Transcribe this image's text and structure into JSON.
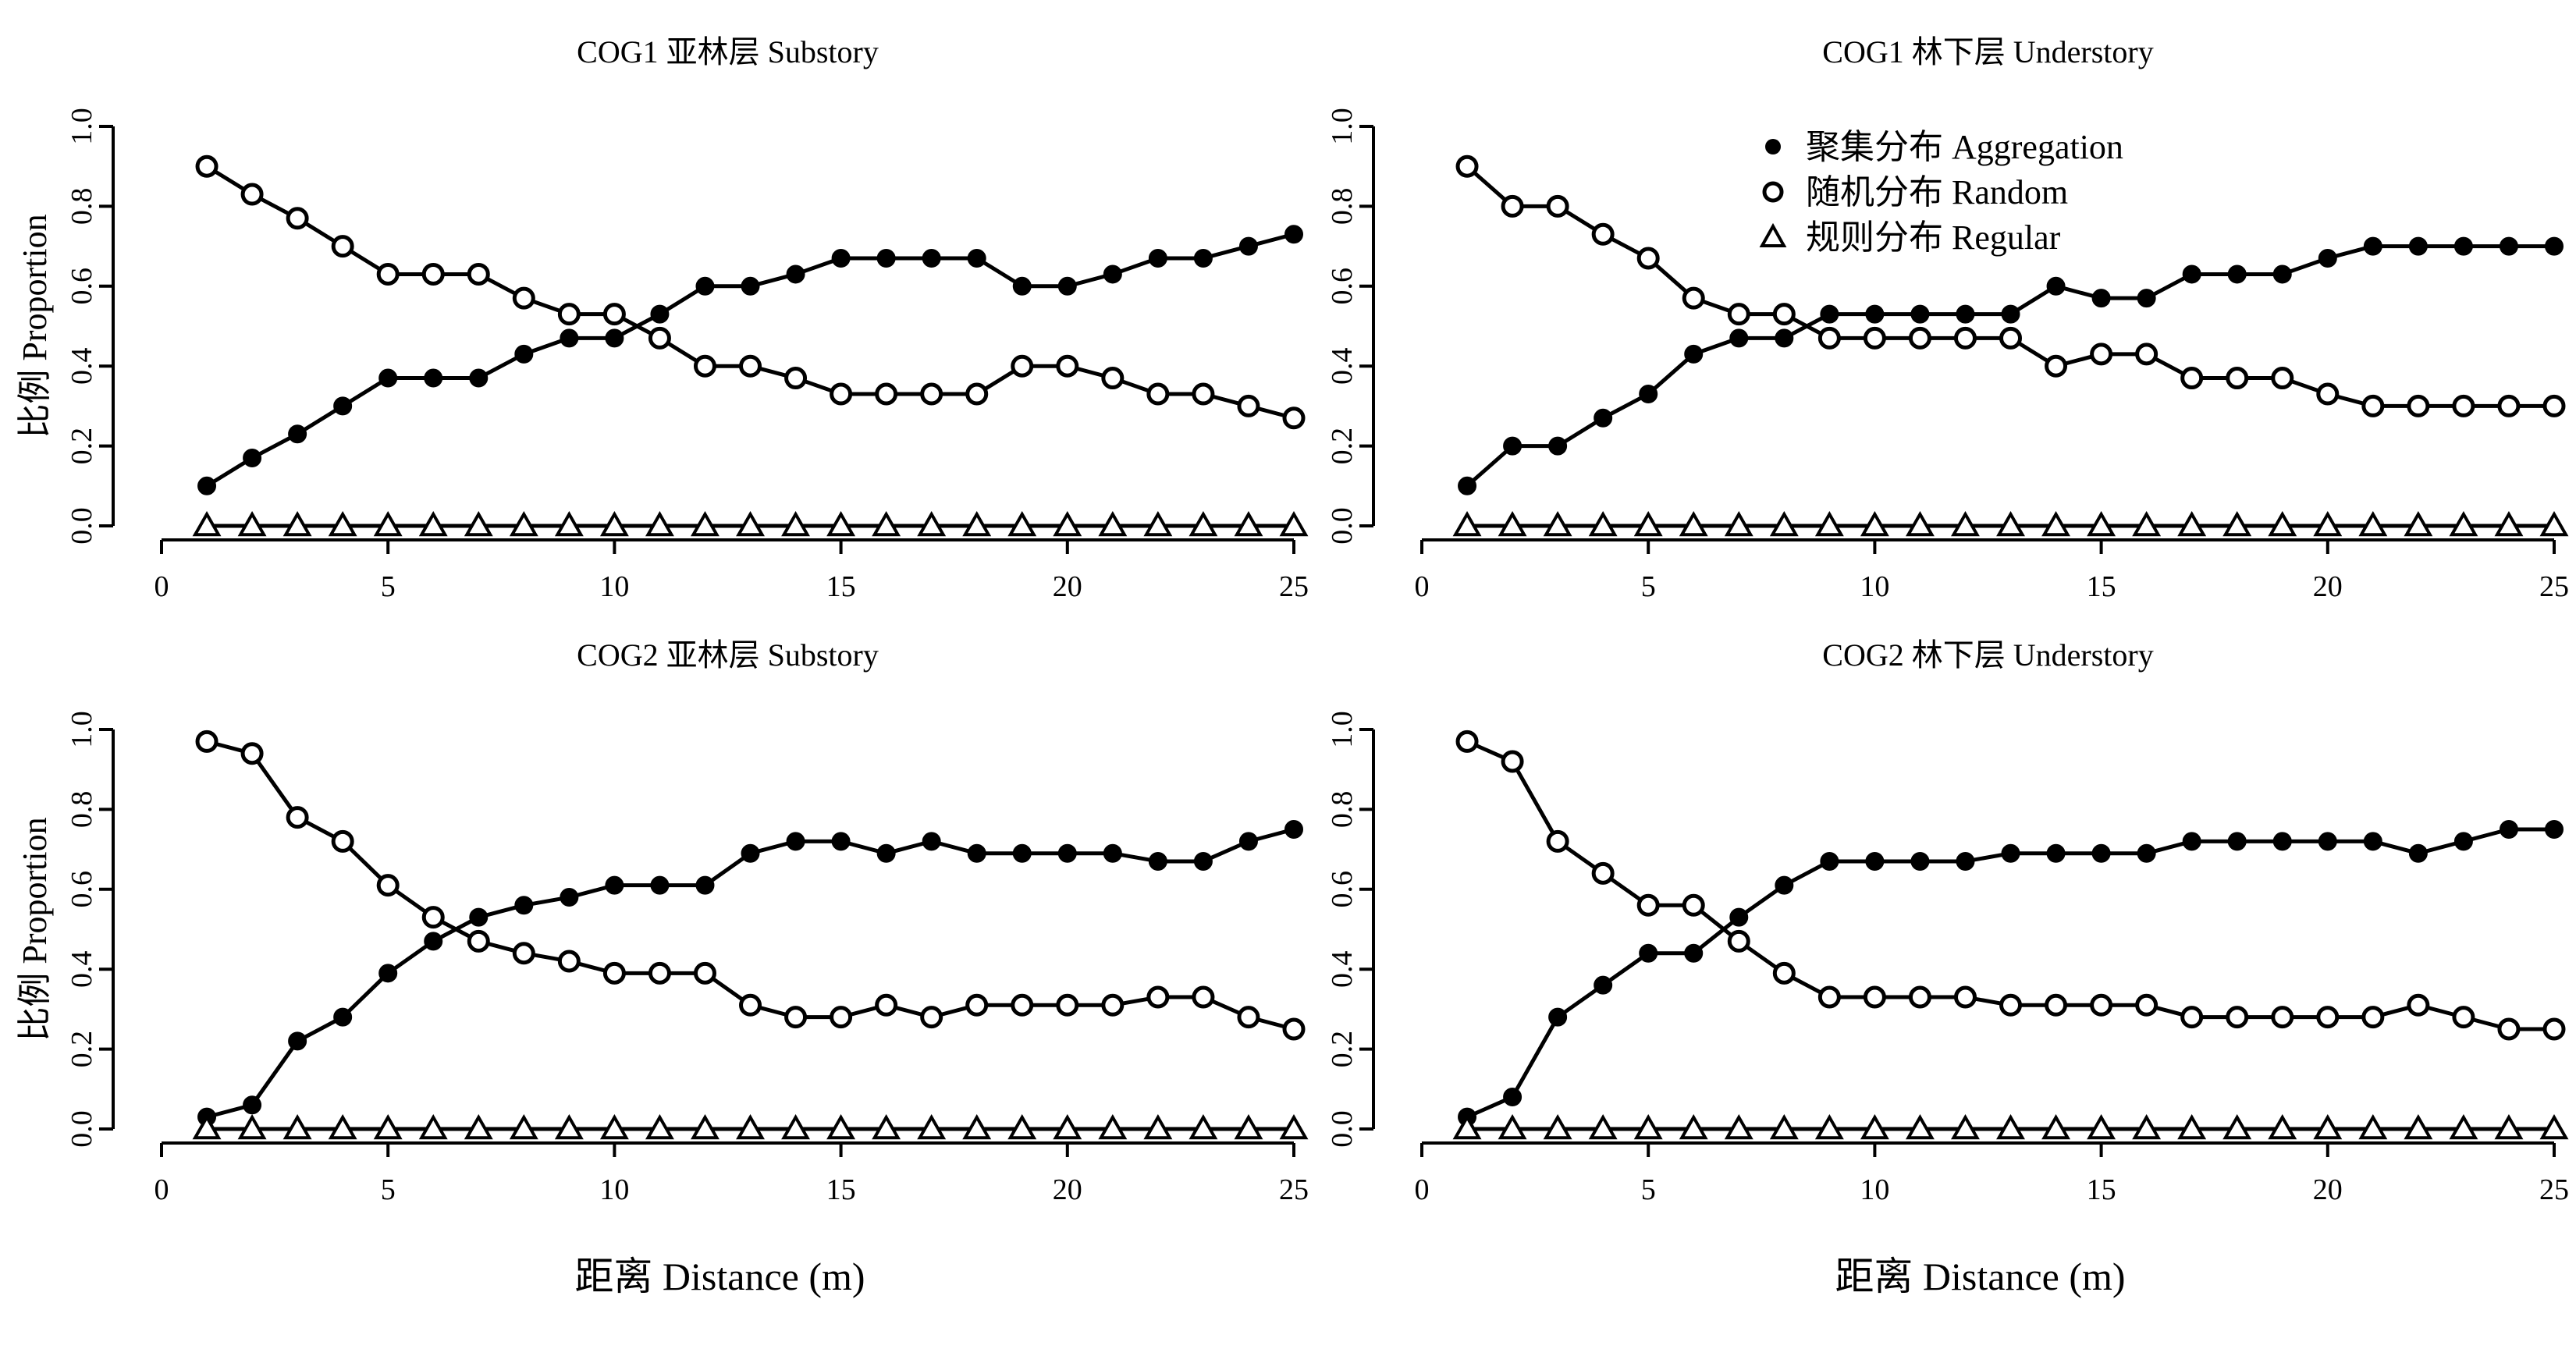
{
  "legend": {
    "position": "top-right of second panel",
    "items": [
      {
        "marker": "filled-circle",
        "label": "聚集分布 Aggregation"
      },
      {
        "marker": "open-circle",
        "label": "随机分布 Random"
      },
      {
        "marker": "open-triangle",
        "label": "规则分布 Regular"
      }
    ]
  },
  "shared_xlabel": "距离 Distance (m)",
  "chart_data": [
    {
      "type": "line",
      "title": "COG1 亚林层 Substory",
      "xlabel": "",
      "ylabel": "比例 Proportion",
      "xlim": [
        0,
        25
      ],
      "ylim": [
        0,
        1
      ],
      "xticks": [
        "0",
        "5",
        "10",
        "15",
        "20",
        "25"
      ],
      "yticks": [
        "0.0",
        "0.2",
        "0.4",
        "0.6",
        "0.8",
        "1.0"
      ],
      "x": [
        1,
        2,
        3,
        4,
        5,
        6,
        7,
        8,
        9,
        10,
        11,
        12,
        13,
        14,
        15,
        16,
        17,
        18,
        19,
        20,
        21,
        22,
        23,
        24,
        25
      ],
      "series": [
        {
          "name": "聚集分布 Aggregation",
          "marker": "filled-circle",
          "values": [
            0.1,
            0.17,
            0.23,
            0.3,
            0.37,
            0.37,
            0.37,
            0.43,
            0.47,
            0.47,
            0.53,
            0.6,
            0.6,
            0.63,
            0.67,
            0.67,
            0.67,
            0.67,
            0.6,
            0.6,
            0.63,
            0.67,
            0.67,
            0.7,
            0.73
          ]
        },
        {
          "name": "随机分布 Random",
          "marker": "open-circle",
          "values": [
            0.9,
            0.83,
            0.77,
            0.7,
            0.63,
            0.63,
            0.63,
            0.57,
            0.53,
            0.53,
            0.47,
            0.4,
            0.4,
            0.37,
            0.33,
            0.33,
            0.33,
            0.33,
            0.4,
            0.4,
            0.37,
            0.33,
            0.33,
            0.3,
            0.27
          ]
        },
        {
          "name": "规则分布 Regular",
          "marker": "open-triangle",
          "values": [
            0,
            0,
            0,
            0,
            0,
            0,
            0,
            0,
            0,
            0,
            0,
            0,
            0,
            0,
            0,
            0,
            0,
            0,
            0,
            0,
            0,
            0,
            0,
            0,
            0
          ]
        }
      ]
    },
    {
      "type": "line",
      "title": "COG1 林下层 Understory",
      "xlabel": "",
      "ylabel": "",
      "xlim": [
        0,
        25
      ],
      "ylim": [
        0,
        1
      ],
      "xticks": [
        "0",
        "5",
        "10",
        "15",
        "20",
        "25"
      ],
      "yticks": [
        "0.0",
        "0.2",
        "0.4",
        "0.6",
        "0.8",
        "1.0"
      ],
      "x": [
        1,
        2,
        3,
        4,
        5,
        6,
        7,
        8,
        9,
        10,
        11,
        12,
        13,
        14,
        15,
        16,
        17,
        18,
        19,
        20,
        21,
        22,
        23,
        24,
        25
      ],
      "series": [
        {
          "name": "聚集分布 Aggregation",
          "marker": "filled-circle",
          "values": [
            0.1,
            0.2,
            0.2,
            0.27,
            0.33,
            0.43,
            0.47,
            0.47,
            0.53,
            0.53,
            0.53,
            0.53,
            0.53,
            0.6,
            0.57,
            0.57,
            0.63,
            0.63,
            0.63,
            0.67,
            0.7,
            0.7,
            0.7,
            0.7,
            0.7
          ]
        },
        {
          "name": "随机分布 Random",
          "marker": "open-circle",
          "values": [
            0.9,
            0.8,
            0.8,
            0.73,
            0.67,
            0.57,
            0.53,
            0.53,
            0.47,
            0.47,
            0.47,
            0.47,
            0.47,
            0.4,
            0.43,
            0.43,
            0.37,
            0.37,
            0.37,
            0.33,
            0.3,
            0.3,
            0.3,
            0.3,
            0.3
          ]
        },
        {
          "name": "规则分布 Regular",
          "marker": "open-triangle",
          "values": [
            0,
            0,
            0,
            0,
            0,
            0,
            0,
            0,
            0,
            0,
            0,
            0,
            0,
            0,
            0,
            0,
            0,
            0,
            0,
            0,
            0,
            0,
            0,
            0,
            0
          ]
        }
      ]
    },
    {
      "type": "line",
      "title": "COG2 亚林层  Substory",
      "xlabel": "距离 Distance (m)",
      "ylabel": "比例 Proportion",
      "xlim": [
        0,
        25
      ],
      "ylim": [
        0,
        1
      ],
      "xticks": [
        "0",
        "5",
        "10",
        "15",
        "20",
        "25"
      ],
      "yticks": [
        "0.0",
        "0.2",
        "0.4",
        "0.6",
        "0.8",
        "1.0"
      ],
      "x": [
        1,
        2,
        3,
        4,
        5,
        6,
        7,
        8,
        9,
        10,
        11,
        12,
        13,
        14,
        15,
        16,
        17,
        18,
        19,
        20,
        21,
        22,
        23,
        24,
        25
      ],
      "series": [
        {
          "name": "聚集分布 Aggregation",
          "marker": "filled-circle",
          "values": [
            0.03,
            0.06,
            0.22,
            0.28,
            0.39,
            0.47,
            0.53,
            0.56,
            0.58,
            0.61,
            0.61,
            0.61,
            0.69,
            0.72,
            0.72,
            0.69,
            0.72,
            0.69,
            0.69,
            0.69,
            0.69,
            0.67,
            0.67,
            0.72,
            0.75
          ]
        },
        {
          "name": "随机分布 Random",
          "marker": "open-circle",
          "values": [
            0.97,
            0.94,
            0.78,
            0.72,
            0.61,
            0.53,
            0.47,
            0.44,
            0.42,
            0.39,
            0.39,
            0.39,
            0.31,
            0.28,
            0.28,
            0.31,
            0.28,
            0.31,
            0.31,
            0.31,
            0.31,
            0.33,
            0.33,
            0.28,
            0.25
          ]
        },
        {
          "name": "规则分布 Regular",
          "marker": "open-triangle",
          "values": [
            0,
            0,
            0,
            0,
            0,
            0,
            0,
            0,
            0,
            0,
            0,
            0,
            0,
            0,
            0,
            0,
            0,
            0,
            0,
            0,
            0,
            0,
            0,
            0,
            0
          ]
        }
      ]
    },
    {
      "type": "line",
      "title": "COG2 林下层  Understory",
      "xlabel": "距离 Distance (m)",
      "ylabel": "",
      "xlim": [
        0,
        25
      ],
      "ylim": [
        0,
        1
      ],
      "xticks": [
        "0",
        "5",
        "10",
        "15",
        "20",
        "25"
      ],
      "yticks": [
        "0.0",
        "0.2",
        "0.4",
        "0.6",
        "0.8",
        "1.0"
      ],
      "x": [
        1,
        2,
        3,
        4,
        5,
        6,
        7,
        8,
        9,
        10,
        11,
        12,
        13,
        14,
        15,
        16,
        17,
        18,
        19,
        20,
        21,
        22,
        23,
        24,
        25
      ],
      "series": [
        {
          "name": "聚集分布 Aggregation",
          "marker": "filled-circle",
          "values": [
            0.03,
            0.08,
            0.28,
            0.36,
            0.44,
            0.44,
            0.53,
            0.61,
            0.67,
            0.67,
            0.67,
            0.67,
            0.69,
            0.69,
            0.69,
            0.69,
            0.72,
            0.72,
            0.72,
            0.72,
            0.72,
            0.69,
            0.72,
            0.75,
            0.75
          ]
        },
        {
          "name": "随机分布 Random",
          "marker": "open-circle",
          "values": [
            0.97,
            0.92,
            0.72,
            0.64,
            0.56,
            0.56,
            0.47,
            0.39,
            0.33,
            0.33,
            0.33,
            0.33,
            0.31,
            0.31,
            0.31,
            0.31,
            0.28,
            0.28,
            0.28,
            0.28,
            0.28,
            0.31,
            0.28,
            0.25,
            0.25
          ]
        },
        {
          "name": "规则分布 Regular",
          "marker": "open-triangle",
          "values": [
            0,
            0,
            0,
            0,
            0,
            0,
            0,
            0,
            0,
            0,
            0,
            0,
            0,
            0,
            0,
            0,
            0,
            0,
            0,
            0,
            0,
            0,
            0,
            0,
            0
          ]
        }
      ]
    }
  ]
}
